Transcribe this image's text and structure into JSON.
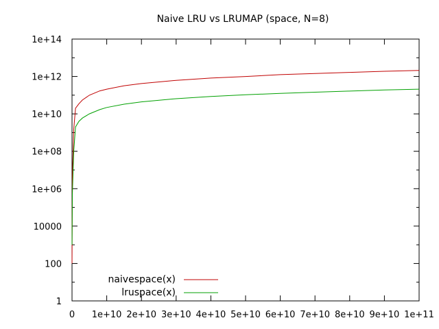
{
  "chart_data": {
    "type": "line",
    "title": "Naive LRU vs LRUMAP (space, N=8)",
    "xlabel": "",
    "ylabel": "",
    "xlim": [
      0,
      100000000000
    ],
    "ylim": [
      1,
      100000000000000
    ],
    "yscale": "log",
    "grid": false,
    "legend_position": "bottom-left",
    "x_tick_labels": [
      "0",
      "1e+10",
      "2e+10",
      "3e+10",
      "4e+10",
      "5e+10",
      "6e+10",
      "7e+10",
      "8e+10",
      "9e+10",
      "1e+11"
    ],
    "y_tick_labels": [
      "1",
      "100",
      "10000",
      "1e+06",
      "1e+08",
      "1e+10",
      "1e+12",
      "1e+14"
    ],
    "series": [
      {
        "name": "naivespace(x)",
        "color": "#c00000",
        "x": [
          1000000,
          100000000,
          500000000,
          1000000000,
          2000000000,
          3000000000,
          5000000000,
          8000000000,
          10000000000,
          15000000000,
          20000000000,
          30000000000,
          40000000000,
          50000000000,
          60000000000,
          70000000000,
          80000000000,
          90000000000,
          100000000000
        ],
        "y": [
          100,
          5000000,
          1500000000,
          20000000000,
          35000000000,
          55000000000,
          100000000000,
          170000000000,
          210000000000,
          320000000000,
          420000000000,
          620000000000,
          820000000000,
          1000000000000,
          1250000000000,
          1450000000000,
          1650000000000,
          1900000000000,
          2100000000000
        ]
      },
      {
        "name": "lruspace(x)",
        "color": "#00a000",
        "x": [
          1000000,
          100000000,
          500000000,
          1000000000,
          2000000000,
          3000000000,
          5000000000,
          8000000000,
          10000000000,
          15000000000,
          20000000000,
          30000000000,
          40000000000,
          50000000000,
          60000000000,
          70000000000,
          80000000000,
          90000000000,
          100000000000
        ],
        "y": [
          1000,
          500000,
          100000000,
          2000000000,
          4000000000,
          6000000000,
          10000000000,
          17000000000,
          22000000000,
          33000000000,
          44000000000,
          65000000000,
          85000000000,
          105000000000,
          125000000000,
          145000000000,
          165000000000,
          190000000000,
          210000000000
        ]
      }
    ]
  }
}
